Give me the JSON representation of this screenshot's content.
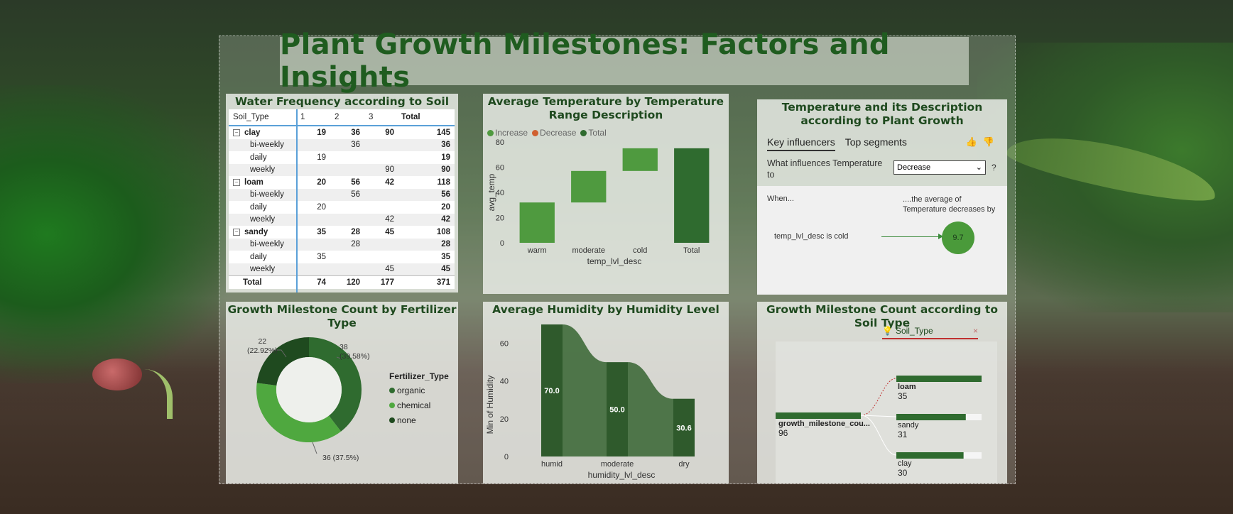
{
  "title": "Plant Growth Milestones: Factors and Insights",
  "colors": {
    "dark_green": "#2f6b2f",
    "mid_green": "#4f9a3f",
    "light_green": "#62b04a",
    "title_green": "#1f5c1f"
  },
  "matrix": {
    "title": "Water Frequency according to Soil Type",
    "headers": {
      "row": "Soil_Type",
      "c1": "1",
      "c2": "2",
      "c3": "3",
      "total": "Total"
    },
    "rows": [
      {
        "label": "clay",
        "c1": "19",
        "c2": "36",
        "c3": "90",
        "total": "145"
      },
      {
        "label": "bi-weekly",
        "c1": "",
        "c2": "36",
        "c3": "",
        "total": "36"
      },
      {
        "label": "daily",
        "c1": "19",
        "c2": "",
        "c3": "",
        "total": "19"
      },
      {
        "label": "weekly",
        "c1": "",
        "c2": "",
        "c3": "90",
        "total": "90"
      },
      {
        "label": "loam",
        "c1": "20",
        "c2": "56",
        "c3": "42",
        "total": "118"
      },
      {
        "label": "bi-weekly",
        "c1": "",
        "c2": "56",
        "c3": "",
        "total": "56"
      },
      {
        "label": "daily",
        "c1": "20",
        "c2": "",
        "c3": "",
        "total": "20"
      },
      {
        "label": "weekly",
        "c1": "",
        "c2": "",
        "c3": "42",
        "total": "42"
      },
      {
        "label": "sandy",
        "c1": "35",
        "c2": "28",
        "c3": "45",
        "total": "108"
      },
      {
        "label": "bi-weekly",
        "c1": "",
        "c2": "28",
        "c3": "",
        "total": "28"
      },
      {
        "label": "daily",
        "c1": "35",
        "c2": "",
        "c3": "",
        "total": "35"
      },
      {
        "label": "weekly",
        "c1": "",
        "c2": "",
        "c3": "45",
        "total": "45"
      },
      {
        "label": "Total",
        "c1": "74",
        "c2": "120",
        "c3": "177",
        "total": "371"
      }
    ]
  },
  "temp_chart": {
    "title": "Average Temperature by Temperature Range Description",
    "legend": [
      "Increase",
      "Decrease",
      "Total"
    ],
    "ylabel": "avg_temp",
    "xlabel": "temp_lvl_desc"
  },
  "key_influencers": {
    "title": "Temperature and its Description according to Plant Growth",
    "tab_active": "Key influencers",
    "tab_other": "Top segments",
    "question": "What influences Temperature to",
    "dropdown_value": "Decrease",
    "help": "?",
    "when": "When...",
    "avg_note": "....the average of Temperature decreases by",
    "factor": "temp_lvl_desc is cold",
    "value": "9.7"
  },
  "donut": {
    "title": "Growth Milestone Count by Fertilizer Type",
    "legend_title": "Fertilizer_Type",
    "labels": {
      "organic": "38\n(39.58%)",
      "chemical": "36 (37.5%)",
      "none": "22\n(22.92%)"
    },
    "legend": [
      "organic",
      "chemical",
      "none"
    ]
  },
  "humidity_chart": {
    "title": "Average Humidity by Humidity Level",
    "ylabel": "Min of Humidity",
    "xlabel": "humidity_lvl_desc"
  },
  "decomp": {
    "title": "Growth Milestone Count according to Soil Type",
    "header": "Soil_Type",
    "root_label": "growth_milestone_cou...",
    "root_value": "96",
    "nodes": [
      {
        "label": "loam",
        "value": "35"
      },
      {
        "label": "sandy",
        "value": "31"
      },
      {
        "label": "clay",
        "value": "30"
      }
    ]
  },
  "chart_data": [
    {
      "type": "bar",
      "subtype": "waterfall",
      "title": "Average Temperature by Temperature Range Description",
      "xlabel": "temp_lvl_desc",
      "ylabel": "avg_temp",
      "categories": [
        "warm",
        "moderate",
        "cold",
        "Total"
      ],
      "steps": [
        {
          "category": "warm",
          "start": 0,
          "end": 32
        },
        {
          "category": "moderate",
          "start": 32,
          "end": 57
        },
        {
          "category": "cold",
          "start": 57,
          "end": 75
        },
        {
          "category": "Total",
          "start": 0,
          "end": 75
        }
      ],
      "ylim": [
        0,
        80
      ],
      "yticks": [
        0,
        20,
        40,
        60,
        80
      ],
      "legend": [
        "Increase",
        "Decrease",
        "Total"
      ]
    },
    {
      "type": "pie",
      "subtype": "donut",
      "title": "Growth Milestone Count by Fertilizer Type",
      "categories": [
        "organic",
        "chemical",
        "none"
      ],
      "values": [
        38,
        36,
        22
      ],
      "percents": [
        39.58,
        37.5,
        22.92
      ],
      "legend_title": "Fertilizer_Type"
    },
    {
      "type": "area",
      "subtype": "ribbon",
      "title": "Average Humidity by Humidity Level",
      "xlabel": "humidity_lvl_desc",
      "ylabel": "Min of Humidity",
      "categories": [
        "humid",
        "moderate",
        "dry"
      ],
      "values": [
        70.0,
        50.0,
        30.6
      ],
      "value_labels": [
        "70.0",
        "50.0",
        "30.6"
      ],
      "ylim": [
        0,
        70
      ],
      "yticks": [
        0,
        20,
        40,
        60
      ]
    },
    {
      "type": "bar",
      "subtype": "decomposition-tree",
      "title": "Growth Milestone Count according to Soil Type",
      "root": {
        "label": "growth_milestone_cou...",
        "value": 96
      },
      "categories": [
        "loam",
        "sandy",
        "clay"
      ],
      "values": [
        35,
        31,
        30
      ]
    }
  ]
}
